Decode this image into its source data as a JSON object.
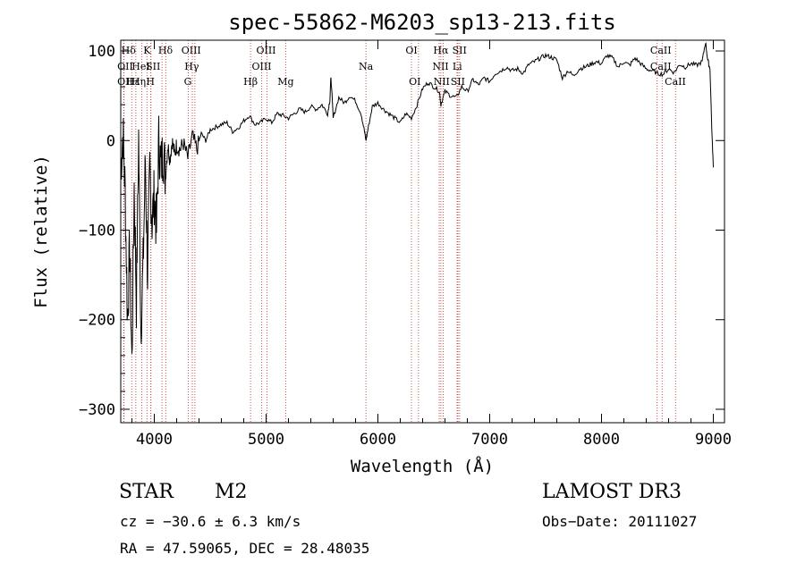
{
  "chart_data": {
    "type": "line",
    "title": "spec-55862-M6203_sp13-213.fits",
    "xlabel": "Wavelength (Å)",
    "ylabel": "Flux (relative)",
    "xlim": [
      3700,
      9100
    ],
    "ylim": [
      -315,
      112
    ],
    "xticks": [
      4000,
      5000,
      6000,
      7000,
      8000,
      9000
    ],
    "yticks": [
      100,
      0,
      -100,
      -200,
      -300
    ],
    "line_color": "#000000",
    "marker_color": "#cc2222",
    "series": [
      {
        "name": "flux",
        "x": [
          3700,
          3720,
          3740,
          3760,
          3780,
          3800,
          3820,
          3840,
          3860,
          3880,
          3900,
          3920,
          3940,
          3960,
          3980,
          4000,
          4020,
          4040,
          4060,
          4080,
          4100,
          4120,
          4140,
          4160,
          4180,
          4200,
          4230,
          4260,
          4300,
          4340,
          4380,
          4420,
          4460,
          4500,
          4550,
          4600,
          4650,
          4700,
          4750,
          4800,
          4850,
          4900,
          4950,
          5000,
          5050,
          5100,
          5150,
          5200,
          5250,
          5300,
          5350,
          5400,
          5450,
          5500,
          5550,
          5570,
          5580,
          5600,
          5650,
          5700,
          5750,
          5800,
          5850,
          5880,
          5893,
          5910,
          5950,
          6000,
          6050,
          6100,
          6150,
          6200,
          6250,
          6300,
          6350,
          6400,
          6450,
          6500,
          6550,
          6563,
          6600,
          6650,
          6700,
          6750,
          6800,
          6850,
          6900,
          6950,
          7000,
          7050,
          7100,
          7150,
          7200,
          7250,
          7300,
          7350,
          7400,
          7450,
          7500,
          7550,
          7600,
          7650,
          7700,
          7750,
          7800,
          7850,
          7900,
          7950,
          8000,
          8050,
          8100,
          8150,
          8200,
          8250,
          8300,
          8350,
          8400,
          8450,
          8500,
          8550,
          8600,
          8650,
          8700,
          8750,
          8800,
          8850,
          8900,
          8930,
          8950,
          8970,
          8990,
          9000
        ],
        "y": [
          -30,
          10,
          -60,
          -200,
          -120,
          -250,
          -50,
          -180,
          5,
          -210,
          -140,
          -20,
          -150,
          -30,
          -90,
          -60,
          -100,
          0,
          -30,
          -10,
          -40,
          -5,
          -20,
          0,
          -15,
          -5,
          -10,
          -3,
          -20,
          5,
          -10,
          8,
          0,
          12,
          15,
          18,
          20,
          10,
          14,
          22,
          28,
          18,
          20,
          25,
          20,
          30,
          28,
          25,
          30,
          35,
          32,
          38,
          35,
          40,
          30,
          45,
          72,
          25,
          48,
          42,
          50,
          44,
          30,
          10,
          0,
          12,
          38,
          42,
          35,
          30,
          25,
          20,
          30,
          25,
          40,
          58,
          65,
          60,
          55,
          40,
          55,
          50,
          48,
          60,
          55,
          68,
          62,
          70,
          66,
          75,
          78,
          82,
          78,
          80,
          75,
          85,
          88,
          92,
          95,
          93,
          90,
          70,
          78,
          72,
          80,
          82,
          85,
          88,
          86,
          95,
          92,
          82,
          88,
          84,
          92,
          86,
          80,
          78,
          75,
          74,
          80,
          76,
          85,
          82,
          86,
          84,
          88,
          110,
          90,
          80,
          0,
          -30
        ]
      }
    ],
    "lines": [
      {
        "label": "Hδ",
        "wl": 3798
      },
      {
        "label": "OII",
        "wl": 3727
      },
      {
        "label": "OII",
        "wl": 3729
      },
      {
        "label": "Hε",
        "wl": 3835
      },
      {
        "label": "Hη",
        "wl": 3889
      },
      {
        "label": "K",
        "wl": 3934
      },
      {
        "label": "HeI",
        "wl": 3970
      },
      {
        "label": "H",
        "wl": 3969
      },
      {
        "label": "Hδ",
        "wl": 4102
      },
      {
        "label": "SII",
        "wl": 4069
      },
      {
        "label": "OIII",
        "wl": 4363
      },
      {
        "label": "Hγ",
        "wl": 4340
      },
      {
        "label": "G",
        "wl": 4304
      },
      {
        "label": "Hβ",
        "wl": 4861
      },
      {
        "label": "OIII",
        "wl": 4959
      },
      {
        "label": "OIII",
        "wl": 5007
      },
      {
        "label": "Mg",
        "wl": 5175
      },
      {
        "label": "Na",
        "wl": 5893
      },
      {
        "label": "OI",
        "wl": 6300
      },
      {
        "label": "OI",
        "wl": 6363
      },
      {
        "label": "Hα",
        "wl": 6563
      },
      {
        "label": "NII",
        "wl": 6548
      },
      {
        "label": "NII",
        "wl": 6583
      },
      {
        "label": "SII",
        "wl": 6716
      },
      {
        "label": "SII",
        "wl": 6731
      },
      {
        "label": "Li",
        "wl": 6708
      },
      {
        "label": "CaII",
        "wl": 8498
      },
      {
        "label": "CaII",
        "wl": 8542
      },
      {
        "label": "CaII",
        "wl": 8662
      }
    ],
    "line_labels": [
      {
        "text": "Hδ",
        "wl": 3770,
        "row": 0
      },
      {
        "text": "K",
        "wl": 3935,
        "row": 0
      },
      {
        "text": "Hδ",
        "wl": 4100,
        "row": 0
      },
      {
        "text": "OIII",
        "wl": 4330,
        "row": 0
      },
      {
        "text": "OIII",
        "wl": 5000,
        "row": 0
      },
      {
        "text": "OI",
        "wl": 6300,
        "row": 0
      },
      {
        "text": "Hα",
        "wl": 6563,
        "row": 0
      },
      {
        "text": "SII",
        "wl": 6730,
        "row": 0
      },
      {
        "text": "CaII",
        "wl": 8530,
        "row": 0
      },
      {
        "text": "OII",
        "wl": 3740,
        "row": 1
      },
      {
        "text": "HeI",
        "wl": 3880,
        "row": 1
      },
      {
        "text": "SII",
        "wl": 3990,
        "row": 1
      },
      {
        "text": "Hγ",
        "wl": 4335,
        "row": 1
      },
      {
        "text": "OIII",
        "wl": 4960,
        "row": 1
      },
      {
        "text": "Na",
        "wl": 5893,
        "row": 1
      },
      {
        "text": "NII",
        "wl": 6560,
        "row": 1
      },
      {
        "text": "Li",
        "wl": 6710,
        "row": 1
      },
      {
        "text": "CaII",
        "wl": 8530,
        "row": 1
      },
      {
        "text": "OII",
        "wl": 3740,
        "row": 2
      },
      {
        "text": "Hε",
        "wl": 3810,
        "row": 2
      },
      {
        "text": "Hη",
        "wl": 3860,
        "row": 2
      },
      {
        "text": "H",
        "wl": 3965,
        "row": 2
      },
      {
        "text": "G",
        "wl": 4300,
        "row": 2
      },
      {
        "text": "Hβ",
        "wl": 4861,
        "row": 2
      },
      {
        "text": "Mg",
        "wl": 5175,
        "row": 2
      },
      {
        "text": "OI",
        "wl": 6330,
        "row": 2
      },
      {
        "text": "NII",
        "wl": 6570,
        "row": 2
      },
      {
        "text": "SII",
        "wl": 6715,
        "row": 2
      },
      {
        "text": "CaII",
        "wl": 8660,
        "row": 2
      }
    ]
  },
  "info": {
    "object_class": "STAR",
    "subclass": "M2",
    "cz": "cz = −30.6 ± 6.3 km/s",
    "coords": "RA =  47.59065, DEC =  28.48035",
    "survey": "LAMOST DR3",
    "obs_date": "Obs−Date: 20111027"
  }
}
